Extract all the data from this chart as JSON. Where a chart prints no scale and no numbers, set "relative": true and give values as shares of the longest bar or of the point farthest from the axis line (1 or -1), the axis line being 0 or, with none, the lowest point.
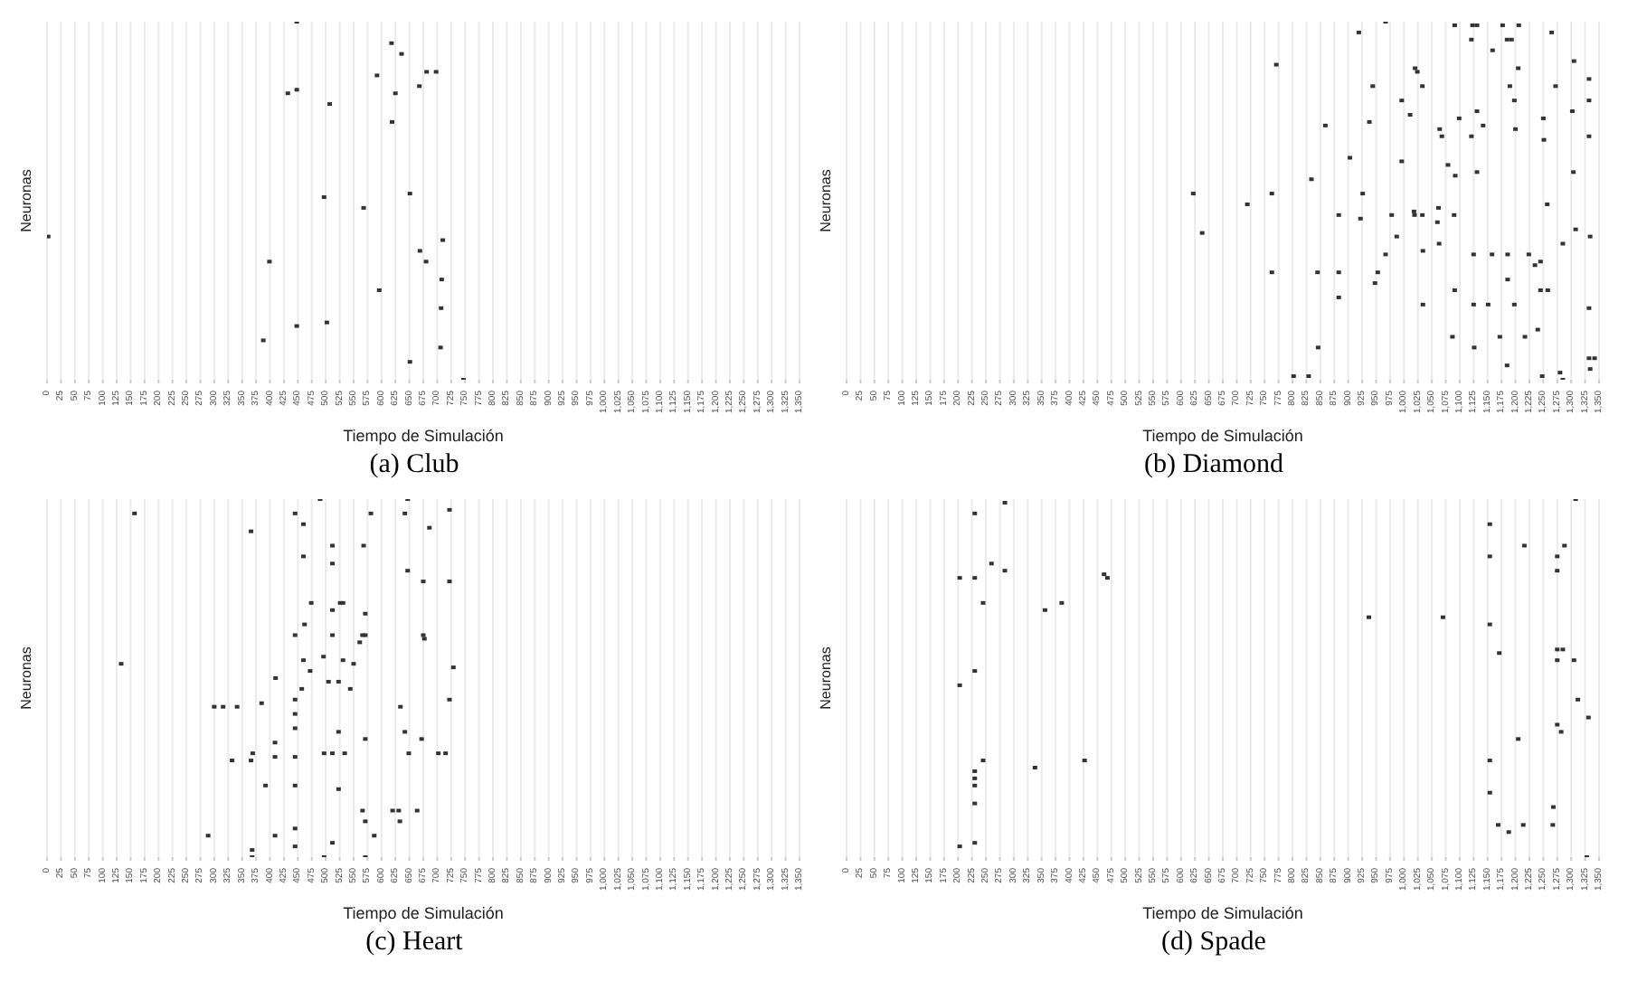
{
  "chart_data": [
    {
      "type": "scatter",
      "title": "(a) Club",
      "xlabel": "Tiempo de Simulación",
      "ylabel": "Neuronas",
      "relative": true,
      "grid": "x",
      "xlim": [
        0,
        1350
      ],
      "xticks": [
        0,
        25,
        50,
        75,
        100,
        125,
        150,
        175,
        200,
        225,
        250,
        275,
        300,
        325,
        350,
        375,
        400,
        425,
        450,
        475,
        500,
        525,
        550,
        575,
        600,
        625,
        650,
        675,
        700,
        725,
        750,
        775,
        800,
        825,
        850,
        875,
        900,
        925,
        950,
        975,
        {
          "value": 1000,
          "label": "1,000"
        },
        {
          "value": 1025,
          "label": "1,025"
        },
        {
          "value": 1050,
          "label": "1,050"
        },
        {
          "value": 1075,
          "label": "1,075"
        },
        {
          "value": 1100,
          "label": "1,100"
        },
        {
          "value": 1125,
          "label": "1,125"
        },
        {
          "value": 1150,
          "label": "1,150"
        },
        {
          "value": 1175,
          "label": "1,175"
        },
        {
          "value": 1200,
          "label": "1,200"
        },
        {
          "value": 1225,
          "label": "1,225"
        },
        {
          "value": 1250,
          "label": "1,250"
        },
        {
          "value": 1275,
          "label": "1,275"
        },
        {
          "value": 1300,
          "label": "1,300"
        },
        {
          "value": 1325,
          "label": "1,325"
        },
        {
          "value": 1350,
          "label": "1,350"
        }
      ],
      "series": [
        {
          "color": "#333333",
          "x": [
            448,
            618,
            636,
            592,
            681,
            698,
            432,
            448,
            507,
            625,
            668,
            619,
            497,
            651,
            568,
            2,
            669,
            710,
            399,
            680,
            708,
            596,
            707,
            502,
            448,
            388,
            706,
            651,
            747
          ],
          "values": [
            1,
            0.94,
            0.91,
            0.85,
            0.86,
            0.86,
            0.8,
            0.81,
            0.77,
            0.8,
            0.82,
            0.72,
            0.51,
            0.52,
            0.48,
            0.4,
            0.36,
            0.39,
            0.33,
            0.33,
            0.28,
            0.25,
            0.2,
            0.16,
            0.15,
            0.11,
            0.09,
            0.05,
            0
          ]
        }
      ]
    },
    {
      "type": "scatter",
      "title": "(b) Diamond",
      "xlabel": "Tiempo de Simulación",
      "ylabel": "Neuronas",
      "relative": true,
      "grid": "x",
      "xlim": [
        0,
        1350
      ],
      "xticks": [
        0,
        25,
        50,
        75,
        100,
        125,
        150,
        175,
        200,
        225,
        250,
        275,
        300,
        325,
        350,
        375,
        400,
        425,
        450,
        475,
        500,
        525,
        550,
        575,
        600,
        625,
        650,
        675,
        700,
        725,
        750,
        775,
        800,
        825,
        850,
        875,
        900,
        925,
        950,
        975,
        {
          "value": 1000,
          "label": "1,000"
        },
        {
          "value": 1025,
          "label": "1,025"
        },
        {
          "value": 1050,
          "label": "1,050"
        },
        {
          "value": 1075,
          "label": "1,075"
        },
        {
          "value": 1100,
          "label": "1,100"
        },
        {
          "value": 1125,
          "label": "1,125"
        },
        {
          "value": 1150,
          "label": "1,150"
        },
        {
          "value": 1175,
          "label": "1,175"
        },
        {
          "value": 1200,
          "label": "1,200"
        },
        {
          "value": 1225,
          "label": "1,225"
        },
        {
          "value": 1250,
          "label": "1,250"
        },
        {
          "value": 1275,
          "label": "1,275"
        },
        {
          "value": 1300,
          "label": "1,300"
        },
        {
          "value": 1325,
          "label": "1,325"
        },
        {
          "value": 1350,
          "label": "1,350"
        }
      ],
      "series": [
        {
          "color": "#333333",
          "x": [
            967,
            1091,
            1123,
            1131,
            1177,
            1206,
            919,
            1121,
            1185,
            1193,
            1265,
            1159,
            1305,
            771,
            1020,
            1024,
            1205,
            944,
            1033,
            1190,
            1272,
            1332,
            996,
            1198,
            1332,
            1011,
            1302,
            1131,
            859,
            938,
            1099,
            1142,
            1064,
            1068,
            1121,
            1200,
            1250,
            1251,
            1332,
            903,
            996,
            1079,
            1092,
            1131,
            1304,
            834,
            622,
            719,
            763,
            926,
            1257,
            638,
            883,
            922,
            978,
            1018,
            1019,
            1033,
            1062,
            1060,
            1090,
            987,
            1308,
            1334,
            1063,
            1034,
            1285,
            967,
            1125,
            1158,
            1186,
            1224,
            1245,
            1235,
            763,
            845,
            883,
            953,
            948,
            1186,
            883,
            1091,
            1245,
            1258,
            1034,
            1125,
            1151,
            1198,
            1332,
            1087,
            1172,
            1217,
            1240,
            1126,
            846,
            1332,
            1342,
            1334,
            1185,
            1248,
            1280,
            1285,
            802,
            829
          ],
          "values": [
            1,
            0.99,
            0.99,
            0.99,
            0.99,
            0.99,
            0.97,
            0.95,
            0.95,
            0.95,
            0.97,
            0.92,
            0.89,
            0.88,
            0.87,
            0.86,
            0.87,
            0.82,
            0.82,
            0.82,
            0.82,
            0.84,
            0.78,
            0.78,
            0.78,
            0.74,
            0.75,
            0.75,
            0.71,
            0.72,
            0.73,
            0.71,
            0.7,
            0.68,
            0.68,
            0.7,
            0.73,
            0.67,
            0.68,
            0.62,
            0.61,
            0.6,
            0.57,
            0.58,
            0.58,
            0.56,
            0.52,
            0.49,
            0.52,
            0.52,
            0.49,
            0.41,
            0.46,
            0.45,
            0.46,
            0.47,
            0.46,
            0.46,
            0.48,
            0.44,
            0.46,
            0.4,
            0.42,
            0.4,
            0.38,
            0.36,
            0.38,
            0.35,
            0.35,
            0.35,
            0.35,
            0.35,
            0.33,
            0.32,
            0.3,
            0.3,
            0.3,
            0.3,
            0.27,
            0.28,
            0.23,
            0.25,
            0.25,
            0.25,
            0.21,
            0.21,
            0.21,
            0.21,
            0.2,
            0.12,
            0.12,
            0.12,
            0.14,
            0.09,
            0.09,
            0.06,
            0.06,
            0.03,
            0.04,
            0.01,
            0.02,
            0,
            0.01,
            0.01
          ]
        }
      ]
    },
    {
      "type": "scatter",
      "title": "(c) Heart",
      "xlabel": "Tiempo de Simulación",
      "ylabel": "Neuronas",
      "relative": true,
      "grid": "x",
      "xlim": [
        0,
        1350
      ],
      "xticks": [
        0,
        25,
        50,
        75,
        100,
        125,
        150,
        175,
        200,
        225,
        250,
        275,
        300,
        325,
        350,
        375,
        400,
        425,
        450,
        475,
        500,
        525,
        550,
        575,
        600,
        625,
        650,
        675,
        700,
        725,
        750,
        775,
        800,
        825,
        850,
        875,
        900,
        925,
        950,
        975,
        {
          "value": 1000,
          "label": "1,000"
        },
        {
          "value": 1025,
          "label": "1,025"
        },
        {
          "value": 1050,
          "label": "1,050"
        },
        {
          "value": 1075,
          "label": "1,075"
        },
        {
          "value": 1100,
          "label": "1,100"
        },
        {
          "value": 1125,
          "label": "1,125"
        },
        {
          "value": 1150,
          "label": "1,150"
        },
        {
          "value": 1175,
          "label": "1,175"
        },
        {
          "value": 1200,
          "label": "1,200"
        },
        {
          "value": 1225,
          "label": "1,225"
        },
        {
          "value": 1250,
          "label": "1,250"
        },
        {
          "value": 1275,
          "label": "1,275"
        },
        {
          "value": 1300,
          "label": "1,300"
        },
        {
          "value": 1325,
          "label": "1,325"
        },
        {
          "value": 1350,
          "label": "1,350"
        }
      ],
      "series": [
        {
          "color": "#333333",
          "x": [
            490,
            647,
            157,
            445,
            581,
            642,
            722,
            460,
            366,
            686,
            512,
            568,
            460,
            512,
            647,
            675,
            722,
            474,
            526,
            531,
            512,
            571,
            462,
            445,
            512,
            566,
            571,
            561,
            675,
            677,
            133,
            460,
            496,
            472,
            531,
            550,
            729,
            410,
            505,
            523,
            457,
            544,
            722,
            300,
            316,
            341,
            385,
            445,
            445,
            634,
            445,
            523,
            571,
            642,
            672,
            409,
            369,
            332,
            366,
            409,
            445,
            497,
            512,
            534,
            649,
            702,
            715,
            392,
            445,
            523,
            566,
            620,
            631,
            664,
            571,
            633,
            289,
            409,
            445,
            587,
            445,
            512,
            368,
            368,
            497,
            571
          ],
          "values": [
            1,
            1,
            0.96,
            0.96,
            0.96,
            0.96,
            0.97,
            0.93,
            0.91,
            0.92,
            0.87,
            0.87,
            0.84,
            0.82,
            0.8,
            0.77,
            0.77,
            0.71,
            0.71,
            0.71,
            0.69,
            0.68,
            0.65,
            0.62,
            0.62,
            0.62,
            0.62,
            0.6,
            0.62,
            0.61,
            0.54,
            0.55,
            0.56,
            0.52,
            0.55,
            0.54,
            0.53,
            0.5,
            0.49,
            0.49,
            0.47,
            0.47,
            0.44,
            0.42,
            0.42,
            0.42,
            0.43,
            0.44,
            0.4,
            0.42,
            0.36,
            0.35,
            0.33,
            0.35,
            0.33,
            0.32,
            0.29,
            0.27,
            0.27,
            0.28,
            0.28,
            0.29,
            0.29,
            0.29,
            0.29,
            0.29,
            0.29,
            0.2,
            0.2,
            0.19,
            0.13,
            0.13,
            0.13,
            0.13,
            0.1,
            0.1,
            0.06,
            0.06,
            0.08,
            0.06,
            0.03,
            0.04,
            0.02,
            0,
            0,
            0
          ]
        }
      ]
    },
    {
      "type": "scatter",
      "title": "(d) Spade",
      "xlabel": "Tiempo de Simulación",
      "ylabel": "Neuronas",
      "relative": true,
      "grid": "x",
      "xlim": [
        0,
        1350
      ],
      "xticks": [
        0,
        25,
        50,
        75,
        100,
        125,
        150,
        175,
        200,
        225,
        250,
        275,
        300,
        325,
        350,
        375,
        400,
        425,
        450,
        475,
        500,
        525,
        550,
        575,
        600,
        625,
        650,
        675,
        700,
        725,
        750,
        775,
        800,
        825,
        850,
        875,
        900,
        925,
        950,
        975,
        {
          "value": 1000,
          "label": "1,000"
        },
        {
          "value": 1025,
          "label": "1,025"
        },
        {
          "value": 1050,
          "label": "1,050"
        },
        {
          "value": 1075,
          "label": "1,075"
        },
        {
          "value": 1100,
          "label": "1,100"
        },
        {
          "value": 1125,
          "label": "1,125"
        },
        {
          "value": 1150,
          "label": "1,150"
        },
        {
          "value": 1175,
          "label": "1,175"
        },
        {
          "value": 1200,
          "label": "1,200"
        },
        {
          "value": 1225,
          "label": "1,225"
        },
        {
          "value": 1250,
          "label": "1,250"
        },
        {
          "value": 1275,
          "label": "1,275"
        },
        {
          "value": 1300,
          "label": "1,300"
        },
        {
          "value": 1325,
          "label": "1,325"
        },
        {
          "value": 1350,
          "label": "1,350"
        }
      ],
      "series": [
        {
          "color": "#333333",
          "x": [
            284,
            230,
            1308,
            1154,
            1216,
            1288,
            260,
            284,
            203,
            230,
            462,
            468,
            1154,
            1275,
            1275,
            245,
            356,
            386,
            937,
            1070,
            1154,
            1275,
            1285,
            1171,
            1275,
            1305,
            230,
            203,
            1312,
            1331,
            1275,
            1282,
            1205,
            245,
            427,
            338,
            230,
            230,
            230,
            230,
            1154,
            1154,
            1268,
            1169,
            1188,
            1214,
            1267,
            203,
            230,
            1328
          ],
          "values": [
            0.99,
            0.96,
            1,
            0.93,
            0.87,
            0.87,
            0.82,
            0.8,
            0.78,
            0.78,
            0.79,
            0.78,
            0.84,
            0.84,
            0.8,
            0.71,
            0.69,
            0.71,
            0.67,
            0.67,
            0.65,
            0.58,
            0.58,
            0.57,
            0.55,
            0.55,
            0.52,
            0.48,
            0.44,
            0.39,
            0.37,
            0.35,
            0.33,
            0.27,
            0.27,
            0.25,
            0.24,
            0.22,
            0.2,
            0.15,
            0.27,
            0.18,
            0.14,
            0.09,
            0.07,
            0.09,
            0.09,
            0.03,
            0.04,
            0
          ]
        }
      ]
    }
  ]
}
